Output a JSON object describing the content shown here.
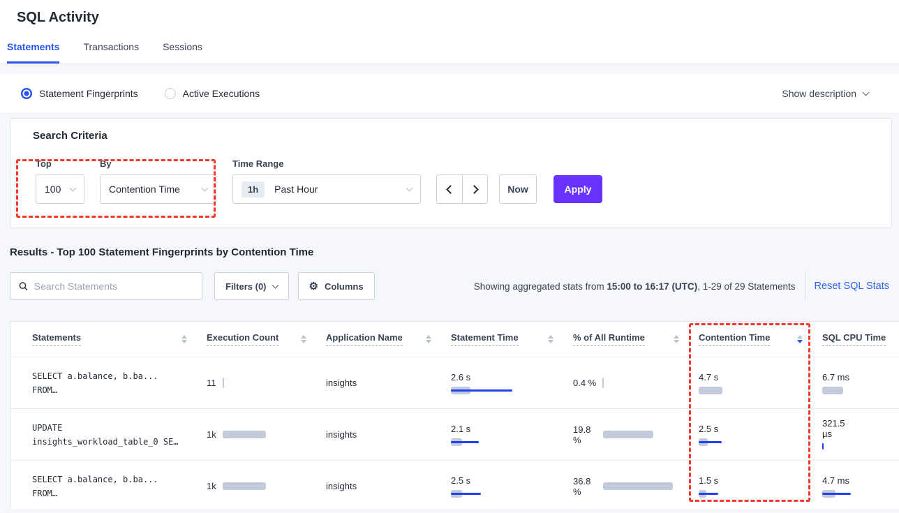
{
  "page": {
    "title": "SQL Activity"
  },
  "tabs": [
    {
      "label": "Statements",
      "active": true
    },
    {
      "label": "Transactions",
      "active": false
    },
    {
      "label": "Sessions",
      "active": false
    }
  ],
  "view_toggle": {
    "options": [
      {
        "label": "Statement Fingerprints",
        "selected": true
      },
      {
        "label": "Active Executions",
        "selected": false
      }
    ],
    "show_description_label": "Show description"
  },
  "search_criteria": {
    "title": "Search Criteria",
    "top": {
      "label": "Top",
      "value": "100"
    },
    "by": {
      "label": "By",
      "value": "Contention Time"
    },
    "time_range": {
      "label": "Time Range",
      "badge": "1h",
      "value": "Past Hour"
    },
    "now_label": "Now",
    "apply_label": "Apply"
  },
  "results": {
    "title": "Results - Top 100 Statement Fingerprints by Contention Time",
    "search_placeholder": "Search Statements",
    "filters_label": "Filters (0)",
    "columns_label": "Columns",
    "gear_icon": "⚙",
    "stats_prefix": "Showing aggregated stats from ",
    "stats_bold": "15:00 to 16:17 (UTC)",
    "stats_suffix": ", 1-29 of 29 Statements",
    "reset_label": "Reset SQL Stats"
  },
  "table": {
    "columns": [
      {
        "label": "Statements",
        "sorted": "none"
      },
      {
        "label": "Execution Count",
        "sorted": "none"
      },
      {
        "label": "Application Name",
        "sorted": "none"
      },
      {
        "label": "Statement Time",
        "sorted": "none"
      },
      {
        "label": "% of All Runtime",
        "sorted": "none"
      },
      {
        "label": "Contention Time",
        "sorted": "desc",
        "highlighted": true
      },
      {
        "label": "SQL CPU Time",
        "sorted": "none"
      }
    ],
    "rows": [
      {
        "statement_line1": "SELECT a.balance, b.ba...",
        "statement_line2": "FROM…",
        "execution_count": "11",
        "execution_bar": 2,
        "app_name": "insights",
        "statement_time": "2.6 s",
        "statement_time_bar": {
          "gray": 28,
          "blue": 88
        },
        "runtime_pct": "0.4 %",
        "runtime_bar": 2,
        "contention_time": "4.7 s",
        "contention_bar": {
          "gray": 34,
          "blue": 0
        },
        "sql_cpu": "6.7 ms",
        "cpu_bar": {
          "gray": 30,
          "blue": 0
        }
      },
      {
        "statement_line1": "UPDATE",
        "statement_line2": "insights_workload_table_0 SE…",
        "execution_count": "1k",
        "execution_bar": 62,
        "app_name": "insights",
        "statement_time": "2.1 s",
        "statement_time_bar": {
          "gray": 16,
          "blue": 40
        },
        "runtime_pct": "19.8 %",
        "runtime_bar": 72,
        "contention_time": "2.5 s",
        "contention_bar": {
          "gray": 13,
          "blue": 33
        },
        "sql_cpu": "321.5 µs",
        "cpu_bar": {
          "gray": 0,
          "blue": 2
        }
      },
      {
        "statement_line1": "SELECT a.balance, b.ba...",
        "statement_line2": "FROM…",
        "execution_count": "1k",
        "execution_bar": 62,
        "app_name": "insights",
        "statement_time": "2.5 s",
        "statement_time_bar": {
          "gray": 16,
          "blue": 43
        },
        "runtime_pct": "36.8 %",
        "runtime_bar": 100,
        "contention_time": "1.5 s",
        "contention_bar": {
          "gray": 11,
          "blue": 28
        },
        "sql_cpu": "4.7 ms",
        "cpu_bar": {
          "gray": 19,
          "blue": 41
        }
      }
    ]
  },
  "colors": {
    "accent_blue": "#2955EB",
    "link_blue": "#2D62F5",
    "apply_purple": "#6933FF",
    "highlight_red": "#F2392B",
    "bar_gray": "#C3CAD9",
    "bar_blue": "#1F41F0",
    "page_background": "#F5F7FA"
  }
}
